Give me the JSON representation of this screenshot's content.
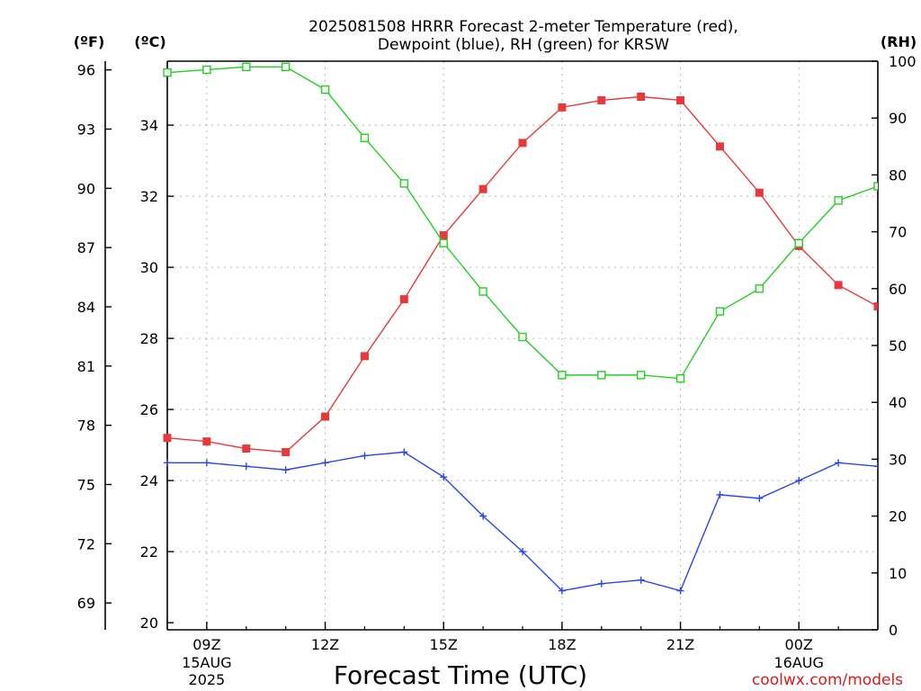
{
  "chart_data": {
    "type": "line",
    "title": "2025081508 HRRR Forecast 2-meter Temperature (red),",
    "subtitle": "Dewpoint (blue), RH (green) for KRSW",
    "xlabel": "Forecast Time (UTC)",
    "credit": "coolwx.com/models",
    "units": {
      "f": "(ºF)",
      "c": "(ºC)",
      "rh": "(RH)"
    },
    "x_hours": [
      8,
      9,
      10,
      11,
      12,
      13,
      14,
      15,
      16,
      17,
      18,
      19,
      20,
      21,
      22,
      23,
      24,
      25,
      26
    ],
    "x_ticks": [
      {
        "hour": 9,
        "label": "09Z",
        "date": "15AUG",
        "year": "2025"
      },
      {
        "hour": 12,
        "label": "12Z",
        "date": "",
        "year": ""
      },
      {
        "hour": 15,
        "label": "15Z",
        "date": "",
        "year": ""
      },
      {
        "hour": 18,
        "label": "18Z",
        "date": "",
        "year": ""
      },
      {
        "hour": 21,
        "label": "21Z",
        "date": "",
        "year": ""
      },
      {
        "hour": 24,
        "label": "00Z",
        "date": "16AUG",
        "year": ""
      }
    ],
    "x_range": [
      8,
      26
    ],
    "y_celsius": {
      "range": [
        19.8,
        35.8
      ],
      "ticks": [
        20,
        22,
        24,
        26,
        28,
        30,
        32,
        34
      ],
      "labels": [
        "20",
        "22",
        "24",
        "26",
        "28",
        "30",
        "32",
        "34"
      ]
    },
    "y_fahrenheit": {
      "ticks": [
        69,
        72,
        75,
        78,
        81,
        84,
        87,
        90,
        93,
        96
      ],
      "labels": [
        "69",
        "72",
        "75",
        "78",
        "81",
        "84",
        "87",
        "90",
        "93",
        "96"
      ]
    },
    "y_rh": {
      "range": [
        0,
        100
      ],
      "ticks": [
        0,
        10,
        20,
        30,
        40,
        50,
        60,
        70,
        80,
        90,
        100
      ],
      "labels": [
        "0",
        "10",
        "20",
        "30",
        "40",
        "50",
        "60",
        "70",
        "80",
        "90",
        "100"
      ]
    },
    "series": [
      {
        "name": "Temperature",
        "color": "#e8383b",
        "axis": "celsius",
        "marker": "filled-square",
        "values": [
          25.2,
          25.1,
          24.9,
          24.8,
          25.8,
          27.5,
          29.1,
          30.9,
          32.2,
          33.5,
          34.5,
          34.7,
          34.8,
          34.7,
          33.4,
          32.1,
          30.6,
          29.5,
          28.9
        ]
      },
      {
        "name": "Dewpoint",
        "color": "#2a45e8",
        "axis": "celsius",
        "marker": "plus",
        "values": [
          24.5,
          24.5,
          24.4,
          24.3,
          24.5,
          24.7,
          24.8,
          24.1,
          23.0,
          22.0,
          20.9,
          21.1,
          21.2,
          20.9,
          23.6,
          23.5,
          24.0,
          24.5,
          24.4
        ]
      },
      {
        "name": "RH",
        "color": "#22d020",
        "axis": "rh",
        "marker": "open-square",
        "values": [
          98,
          98.5,
          99,
          99,
          95,
          86.5,
          78.5,
          68,
          59.5,
          51.5,
          44.8,
          44.8,
          44.8,
          44.2,
          56,
          60,
          68,
          75.5,
          78
        ]
      }
    ]
  }
}
